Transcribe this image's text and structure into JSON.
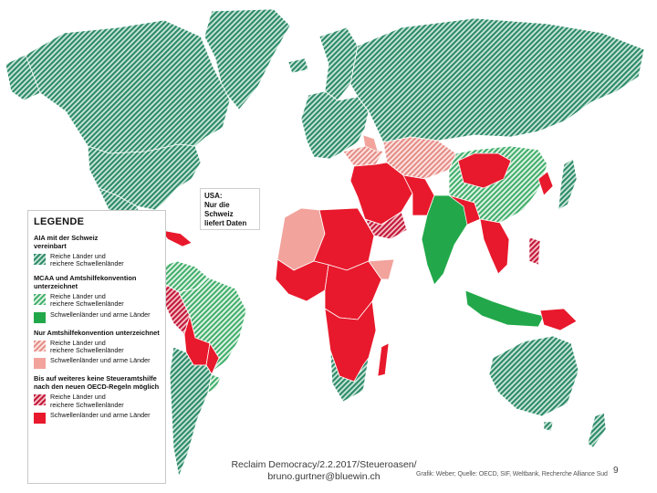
{
  "colors": {
    "rich_aia_hatch": "#2e8b6a",
    "mcaa_rich_hatch": "#3fae6a",
    "mcaa_poor_solid": "#22a84a",
    "mult_rich_hatch": "#e58b85",
    "mult_poor_solid": "#f2a39c",
    "none_rich_hatch": "#c2193a",
    "none_poor_solid": "#e8192c",
    "border": "#ffffff"
  },
  "usa_note": {
    "line1": "USA:",
    "line2": "Nur die Schweiz",
    "line3": "liefert Daten"
  },
  "legend": {
    "title": "LEGENDE",
    "groups": [
      {
        "heading_line1": "AIA mit der Schweiz",
        "heading_line2": "vereinbart",
        "items": [
          {
            "label_line1": "Reiche Länder und",
            "label_line2": "reichere Schwellenländer",
            "swatch": "rich_aia_hatch"
          }
        ]
      },
      {
        "heading_line1": "MCAA und Amtshilfekonvention",
        "heading_line2": "unterzeichnet",
        "items": [
          {
            "label_line1": "Reiche Länder und",
            "label_line2": "reichere Schwellenländer",
            "swatch": "mcaa_rich_hatch"
          },
          {
            "label_line1": "Schwellenländer und arme Länder",
            "label_line2": "",
            "swatch": "mcaa_poor_solid"
          }
        ]
      },
      {
        "heading_line1": "Nur Amtshilfekonvention unterzeichnet",
        "heading_line2": "",
        "items": [
          {
            "label_line1": "Reiche Länder und",
            "label_line2": "reichere Schwellenländer",
            "swatch": "mult_rich_hatch"
          },
          {
            "label_line1": "Schwellenländer und arme Länder",
            "label_line2": "",
            "swatch": "mult_poor_solid"
          }
        ]
      },
      {
        "heading_line1": "Bis auf weiteres keine Steueramtshilfe",
        "heading_line2": "nach den neuen OECD-Regeln möglich",
        "items": [
          {
            "label_line1": "Reiche Länder und",
            "label_line2": "reichere Schwellenländer",
            "swatch": "none_rich_hatch"
          },
          {
            "label_line1": "Schwellenländer und arme Länder",
            "label_line2": "",
            "swatch": "none_poor_solid"
          }
        ]
      }
    ]
  },
  "footer": {
    "line1": "Reclaim Democracy/2.2.2017/Steueroasen/",
    "line2": "bruno.gurtner@bluewin.ch",
    "source": "Grafik: Weber; Quelle: OECD, SIF, Weltbank, Recherche Alliance Sud",
    "page_number": "9"
  }
}
